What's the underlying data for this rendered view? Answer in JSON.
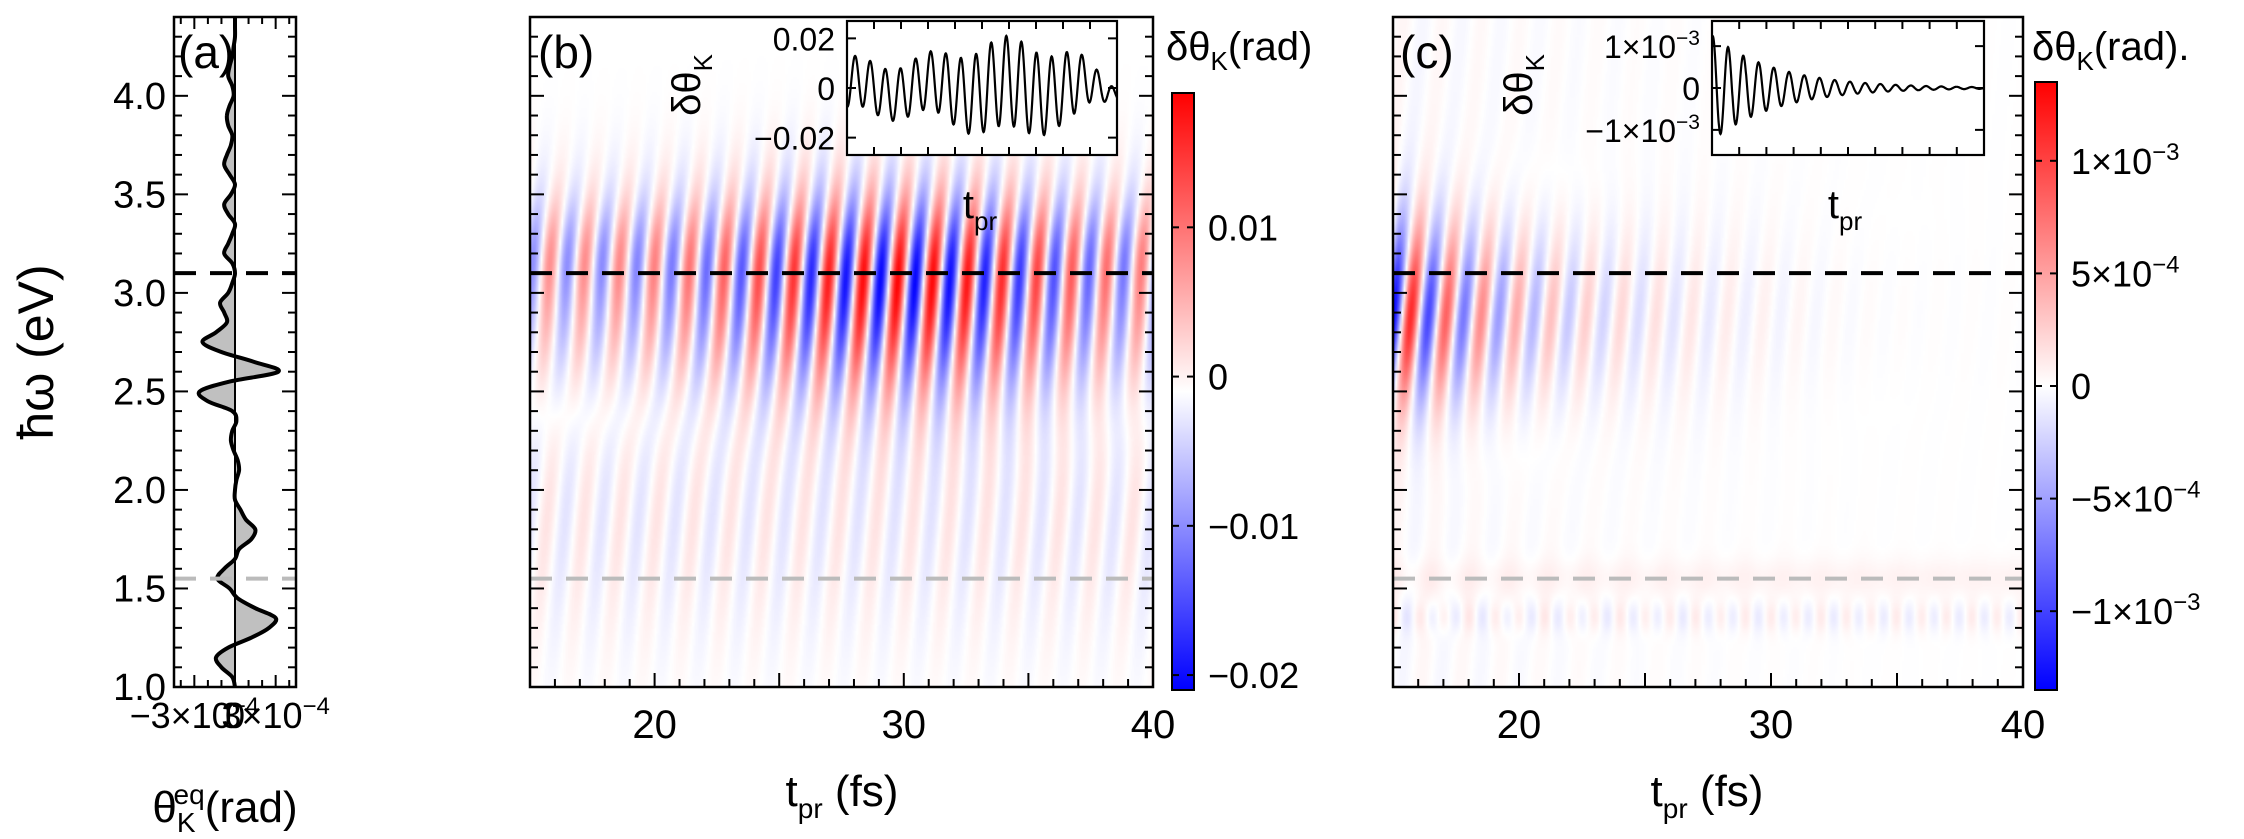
{
  "figure": {
    "colors": {
      "positive": "#ff0000",
      "negative": "#0000ff",
      "zero": "#ffffff",
      "curve": "#000000",
      "fill": "#c0c0c0",
      "dashed_dark": "#000000",
      "dashed_light": "#bbbbbb"
    }
  },
  "chart_data": [
    {
      "id": "a",
      "panel_label": "(a)",
      "type": "line",
      "orientation": "vertical",
      "title": "",
      "ylabel_prefix": "ħω",
      "ylabel_suffix": " (eV)",
      "xlabel_main": "θ",
      "xlabel_sub": "K",
      "xlabel_sup": "eq",
      "xlabel_unit": "(rad)",
      "ylim": [
        1.0,
        4.4
      ],
      "xlim": [
        -0.00045,
        0.00045
      ],
      "y_ticks": [
        1.0,
        1.5,
        2.0,
        2.5,
        3.0,
        3.5,
        4.0
      ],
      "y_tick_labels": [
        "1.0",
        "1.5",
        "2.0",
        "2.5",
        "3.0",
        "3.5",
        "4.0"
      ],
      "x_ticks": [
        -0.0003,
        0,
        0.0003
      ],
      "x_tick_labels": [
        "−3×10",
        "0",
        "3×10"
      ],
      "x_tick_exponents": [
        "−4",
        "",
        "−4"
      ],
      "dashed_lines": [
        {
          "y": 3.1,
          "style": "dark"
        },
        {
          "y": 1.55,
          "style": "light"
        }
      ],
      "energy": [
        1.0,
        1.05,
        1.1,
        1.15,
        1.2,
        1.25,
        1.3,
        1.35,
        1.4,
        1.45,
        1.5,
        1.55,
        1.6,
        1.65,
        1.7,
        1.75,
        1.8,
        1.85,
        1.9,
        1.95,
        2.0,
        2.05,
        2.1,
        2.15,
        2.2,
        2.25,
        2.3,
        2.35,
        2.4,
        2.45,
        2.5,
        2.55,
        2.6,
        2.65,
        2.7,
        2.75,
        2.8,
        2.85,
        2.9,
        2.95,
        3.0,
        3.05,
        3.1,
        3.15,
        3.2,
        3.25,
        3.3,
        3.35,
        3.4,
        3.45,
        3.5,
        3.55,
        3.6,
        3.65,
        3.7,
        3.75,
        3.8,
        3.85,
        3.9,
        3.95,
        4.0,
        4.05,
        4.1,
        4.15,
        4.2,
        4.25,
        4.3,
        4.35,
        4.4
      ],
      "theta_eq": [
        0.0,
        -2e-05,
        -0.0001,
        -0.00014,
        -5e-05,
        0.00012,
        0.00025,
        0.0003,
        0.00015,
        2e-05,
        -4e-05,
        -0.00013,
        -8e-05,
        0.0,
        3e-05,
        0.00012,
        0.00015,
        8e-05,
        4e-05,
        0.0,
        0.0,
        1e-05,
        3e-05,
        2e-05,
        -1e-05,
        -3e-05,
        -2e-05,
        1e-05,
        -2e-05,
        -0.0002,
        -0.00026,
        -4e-05,
        0.00032,
        0.00014,
        -0.0001,
        -0.00024,
        -0.00014,
        -6e-05,
        -8e-05,
        -0.00011,
        -5e-05,
        -2e-05,
        0.0,
        -2e-05,
        -8e-05,
        -5e-05,
        -2e-05,
        0.0,
        -5e-05,
        -8e-05,
        -3e-05,
        0.0,
        -4e-05,
        -8e-05,
        -6e-05,
        -3e-05,
        -2e-05,
        -5e-05,
        -6e-05,
        -4e-05,
        -1e-05,
        -2e-05,
        -5e-05,
        -4e-05,
        -2e-05,
        -1e-05,
        0.0,
        0.0,
        0.0
      ]
    },
    {
      "id": "b",
      "panel_label": "(b)",
      "type": "heatmap",
      "title": "",
      "xlabel_main": "t",
      "xlabel_sub": "pr",
      "xlabel_unit": " (fs)",
      "xlim": [
        15,
        40
      ],
      "ylim": [
        1.0,
        4.4
      ],
      "x_ticks": [
        20,
        30,
        40
      ],
      "x_tick_labels": [
        "20",
        "30",
        "40"
      ],
      "colorbar": {
        "label_main": "δθ",
        "label_sub": "K",
        "label_unit": "(rad)",
        "range": [
          -0.021,
          0.019
        ],
        "ticks": [
          0.01,
          0,
          -0.01,
          -0.02
        ],
        "tick_labels": [
          "0.01",
          "0",
          "−0.01",
          "−0.02"
        ]
      },
      "dashed_lines": [
        {
          "y": 3.1,
          "style": "dark"
        },
        {
          "y": 1.55,
          "style": "light"
        }
      ],
      "signal": {
        "osc_period_fs": 1.4,
        "center_eV": 3.0,
        "width_eV": 0.5,
        "peak_time_fs": 30,
        "amplitude_rad": 0.019,
        "noise_level": 0.12
      },
      "inset": {
        "ylabel_main": "δθ",
        "ylabel_sub": "K",
        "xlabel_main": "t",
        "xlabel_sub": "pr",
        "y_ticks": [
          0.02,
          0,
          -0.02
        ],
        "y_tick_labels": [
          "0.02",
          "0",
          "−0.02"
        ],
        "ylim": [
          -0.027,
          0.027
        ],
        "peak_amplitude": 0.018
      }
    },
    {
      "id": "c",
      "panel_label": "(c)",
      "type": "heatmap",
      "title": "",
      "xlabel_main": "t",
      "xlabel_sub": "pr",
      "xlabel_unit": " (fs)",
      "xlim": [
        15,
        40
      ],
      "ylim": [
        1.0,
        4.4
      ],
      "x_ticks": [
        20,
        30,
        40
      ],
      "x_tick_labels": [
        "20",
        "30",
        "40"
      ],
      "colorbar": {
        "label_main": "δθ",
        "label_sub": "K",
        "label_unit": "(rad).",
        "range": [
          -0.00135,
          0.00135
        ],
        "ticks": [
          0.001,
          0.0005,
          0,
          -0.0005,
          -0.001
        ],
        "tick_labels": [
          "1×10",
          "5×10",
          "0",
          "−5×10",
          "−1×10"
        ],
        "tick_exponents": [
          "−3",
          "−4",
          "",
          "−4",
          "−3"
        ]
      },
      "dashed_lines": [
        {
          "y": 3.1,
          "style": "dark"
        },
        {
          "y": 1.55,
          "style": "light"
        }
      ],
      "signal": {
        "osc_period_fs": 1.4,
        "center_eV": 2.9,
        "width_eV": 0.45,
        "decay_fs": 5,
        "amplitude_rad": 0.00125
      },
      "inset": {
        "ylabel_main": "δθ",
        "ylabel_sub": "K",
        "xlabel_main": "t",
        "xlabel_sub": "pr",
        "y_ticks": [
          0.001,
          0,
          -0.001
        ],
        "y_tick_labels": [
          "1×10",
          "0",
          "−1×10"
        ],
        "y_tick_exponents": [
          "−3",
          "",
          "−3"
        ],
        "ylim": [
          -0.0016,
          0.0016
        ],
        "peak_amplitude": 0.00125
      }
    }
  ]
}
